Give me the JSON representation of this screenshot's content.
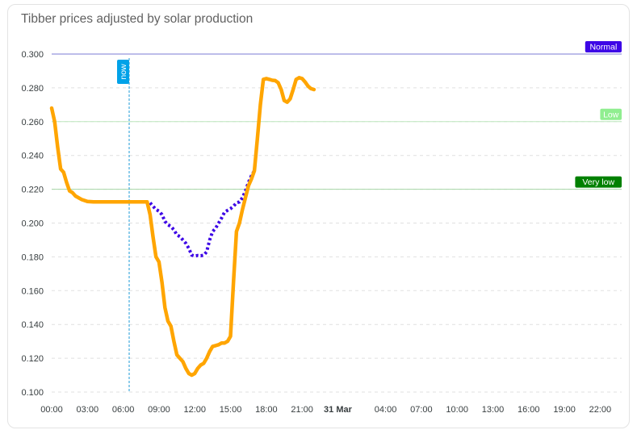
{
  "card": {
    "title": "Tibber prices adjusted by solar production"
  },
  "chart_data": {
    "type": "line",
    "title": "Tibber prices adjusted by solar production",
    "ylim": [
      0.1,
      0.3
    ],
    "y_ticks": [
      "0.100",
      "0.120",
      "0.140",
      "0.160",
      "0.180",
      "0.200",
      "0.220",
      "0.240",
      "0.260",
      "0.280",
      "0.300"
    ],
    "x_range_hours": [
      0,
      47.8
    ],
    "x_ticks": [
      {
        "h": 0,
        "label": "00:00"
      },
      {
        "h": 3,
        "label": "03:00"
      },
      {
        "h": 6,
        "label": "06:00"
      },
      {
        "h": 9,
        "label": "09:00"
      },
      {
        "h": 12,
        "label": "12:00"
      },
      {
        "h": 15,
        "label": "15:00"
      },
      {
        "h": 18,
        "label": "18:00"
      },
      {
        "h": 21,
        "label": "21:00"
      },
      {
        "h": 24,
        "label": "31 Mar",
        "bold": true
      },
      {
        "h": 28,
        "label": "04:00"
      },
      {
        "h": 31,
        "label": "07:00"
      },
      {
        "h": 34,
        "label": "10:00"
      },
      {
        "h": 37,
        "label": "13:00"
      },
      {
        "h": 40,
        "label": "16:00"
      },
      {
        "h": 43,
        "label": "19:00"
      },
      {
        "h": 46,
        "label": "22:00"
      }
    ],
    "grid": true,
    "annotations": {
      "y_lines": [
        {
          "y": 0.3,
          "label": "Normal",
          "line_color": "#7b7bd6",
          "bg": "#3d06e6"
        },
        {
          "y": 0.26,
          "label": "Low",
          "line_color": "#bde7bd",
          "bg": "#90ee90"
        },
        {
          "y": 0.22,
          "label": "Very low",
          "line_color": "#a6d6a6",
          "bg": "#008000"
        }
      ],
      "x_lines": [
        {
          "h": 6.5,
          "label": "now",
          "line_color": "#1e9bd7",
          "bg": "#00a2e8"
        }
      ]
    },
    "series": [
      {
        "color": "#ffa500",
        "style": "solid",
        "x": [
          0,
          0.25,
          0.5,
          0.75,
          1.0,
          1.25,
          1.5,
          1.75,
          2.0,
          2.5,
          3.0,
          3.5,
          4.0,
          5.0,
          6.0,
          7.0,
          8.0,
          8.25,
          8.5,
          8.75,
          9.0,
          9.25,
          9.5,
          9.75,
          10.0,
          10.25,
          10.5,
          10.75,
          11.0,
          11.25,
          11.5,
          11.75,
          12.0,
          12.25,
          12.5,
          12.75,
          13.0,
          13.25,
          13.5,
          13.75,
          14.0,
          14.25,
          14.5,
          14.75,
          15.0,
          15.25,
          15.5,
          15.75,
          16.0,
          16.25,
          16.5,
          16.75,
          17.0,
          17.25,
          17.5,
          17.75,
          18.0,
          18.25,
          18.5,
          18.75,
          19.0,
          19.25,
          19.5,
          19.75,
          20.0,
          20.25,
          20.5,
          20.75,
          21.0,
          21.25,
          21.5,
          21.75,
          22.0
        ],
        "y": [
          0.268,
          0.26,
          0.245,
          0.232,
          0.23,
          0.224,
          0.219,
          0.218,
          0.216,
          0.214,
          0.2128,
          0.2125,
          0.2125,
          0.2125,
          0.2125,
          0.2125,
          0.2125,
          0.205,
          0.192,
          0.18,
          0.177,
          0.165,
          0.15,
          0.142,
          0.139,
          0.13,
          0.122,
          0.12,
          0.118,
          0.114,
          0.111,
          0.11,
          0.111,
          0.114,
          0.116,
          0.117,
          0.12,
          0.124,
          0.127,
          0.1275,
          0.128,
          0.129,
          0.129,
          0.13,
          0.133,
          0.165,
          0.195,
          0.2,
          0.208,
          0.215,
          0.222,
          0.226,
          0.231,
          0.25,
          0.27,
          0.285,
          0.2855,
          0.285,
          0.2845,
          0.2843,
          0.283,
          0.279,
          0.2725,
          0.2715,
          0.2735,
          0.279,
          0.285,
          0.286,
          0.2855,
          0.2835,
          0.281,
          0.2795,
          0.279
        ]
      },
      {
        "color": "#3d06e6",
        "style": "dotted",
        "x": [
          8.25,
          8.5,
          8.75,
          9.0,
          9.25,
          9.5,
          9.75,
          10.0,
          10.25,
          10.5,
          10.75,
          11.0,
          11.25,
          11.5,
          11.75,
          12.0,
          12.25,
          12.5,
          12.75,
          13.0,
          13.25,
          13.5,
          13.75,
          14.0,
          14.25,
          14.5,
          14.75,
          15.0,
          15.25,
          15.5,
          15.75,
          16.0,
          16.25,
          16.5,
          16.75,
          17.0
        ],
        "y": [
          0.212,
          0.21,
          0.208,
          0.207,
          0.205,
          0.201,
          0.199,
          0.198,
          0.196,
          0.193,
          0.192,
          0.19,
          0.188,
          0.185,
          0.181,
          0.1805,
          0.1808,
          0.1806,
          0.181,
          0.183,
          0.19,
          0.195,
          0.197,
          0.2,
          0.203,
          0.2065,
          0.2075,
          0.2085,
          0.21,
          0.212,
          0.2125,
          0.215,
          0.219,
          0.224,
          0.228,
          0.231
        ]
      }
    ]
  }
}
